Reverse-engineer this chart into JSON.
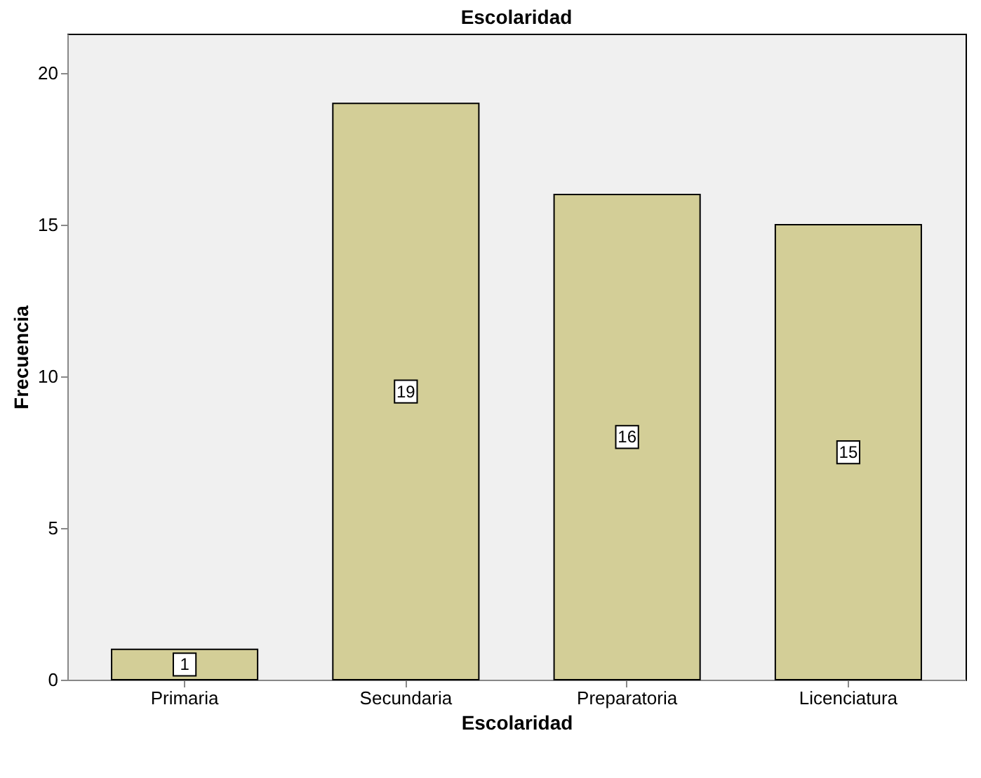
{
  "chart_data": {
    "type": "bar",
    "title": "Escolaridad",
    "xlabel": "Escolaridad",
    "ylabel": "Frecuencia",
    "categories": [
      "Primaria",
      "Secundaria",
      "Preparatoria",
      "Licenciatura"
    ],
    "values": [
      1,
      19,
      16,
      15
    ],
    "color": "#d3ce97",
    "ylim": [
      0,
      21.3
    ],
    "yticks": [
      0,
      5,
      10,
      15,
      20
    ],
    "grid": false,
    "data_labels": true
  }
}
